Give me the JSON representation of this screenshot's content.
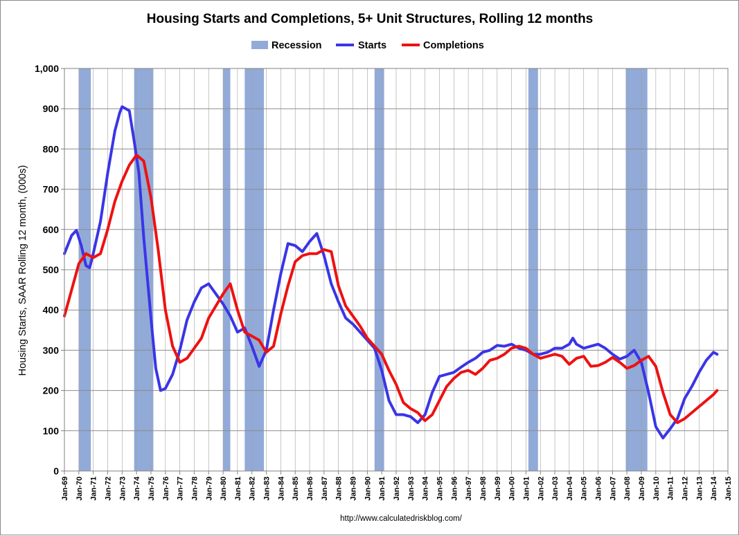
{
  "chart_data": {
    "type": "line",
    "title": "Housing Starts and Completions, 5+ Unit Structures, Rolling 12 months",
    "ylabel": "Housing Starts, SAAR Rolling 12 month, (000s)",
    "xlabel": "",
    "ylim": [
      0,
      1000
    ],
    "yticks": [
      "0",
      "100",
      "200",
      "300",
      "400",
      "500",
      "600",
      "700",
      "800",
      "900",
      "1,000"
    ],
    "xlim": [
      "1969-01",
      "2015-01"
    ],
    "xticks": [
      "Jan-69",
      "Jan-70",
      "Jan-71",
      "Jan-72",
      "Jan-73",
      "Jan-74",
      "Jan-75",
      "Jan-76",
      "Jan-77",
      "Jan-78",
      "Jan-79",
      "Jan-80",
      "Jan-81",
      "Jan-82",
      "Jan-83",
      "Jan-84",
      "Jan-85",
      "Jan-86",
      "Jan-87",
      "Jan-88",
      "Jan-89",
      "Jan-90",
      "Jan-91",
      "Jan-92",
      "Jan-93",
      "Jan-94",
      "Jan-95",
      "Jan-96",
      "Jan-97",
      "Jan-98",
      "Jan-99",
      "Jan-00",
      "Jan-01",
      "Jan-02",
      "Jan-03",
      "Jan-04",
      "Jan-05",
      "Jan-06",
      "Jan-07",
      "Jan-08",
      "Jan-09",
      "Jan-10",
      "Jan-11",
      "Jan-12",
      "Jan-13",
      "Jan-14",
      "Jan-15"
    ],
    "grid": "vertical and horizontal",
    "legend": "top-center",
    "colors": {
      "recession": "#92aad8",
      "starts": "#3a35e6",
      "completions": "#ee1111",
      "plot_background": "#ffffff",
      "grid": "#a0a0a0"
    },
    "recessions": [
      {
        "start": "1970-01",
        "end": "1970-11"
      },
      {
        "start": "1973-11",
        "end": "1975-03"
      },
      {
        "start": "1980-01",
        "end": "1980-07"
      },
      {
        "start": "1981-07",
        "end": "1982-11"
      },
      {
        "start": "1990-07",
        "end": "1991-03"
      },
      {
        "start": "2001-03",
        "end": "2001-11"
      },
      {
        "start": "2007-12",
        "end": "2009-06"
      }
    ],
    "legend_entries": [
      "Recession",
      "Starts",
      "Completions"
    ],
    "series": [
      {
        "name": "Starts",
        "points": [
          [
            "1969-01",
            540
          ],
          [
            "1969-07",
            585
          ],
          [
            "1969-11",
            598
          ],
          [
            "1970-03",
            560
          ],
          [
            "1970-07",
            510
          ],
          [
            "1970-10",
            505
          ],
          [
            "1971-01",
            540
          ],
          [
            "1971-07",
            620
          ],
          [
            "1972-01",
            740
          ],
          [
            "1972-07",
            845
          ],
          [
            "1972-11",
            890
          ],
          [
            "1973-01",
            905
          ],
          [
            "1973-07",
            895
          ],
          [
            "1973-11",
            820
          ],
          [
            "1974-03",
            740
          ],
          [
            "1974-07",
            580
          ],
          [
            "1975-01",
            380
          ],
          [
            "1975-05",
            255
          ],
          [
            "1975-09",
            200
          ],
          [
            "1976-01",
            205
          ],
          [
            "1976-07",
            240
          ],
          [
            "1977-01",
            300
          ],
          [
            "1977-07",
            375
          ],
          [
            "1978-01",
            420
          ],
          [
            "1978-07",
            455
          ],
          [
            "1979-01",
            465
          ],
          [
            "1979-07",
            440
          ],
          [
            "1980-01",
            415
          ],
          [
            "1980-07",
            385
          ],
          [
            "1981-01",
            345
          ],
          [
            "1981-07",
            355
          ],
          [
            "1982-01",
            310
          ],
          [
            "1982-07",
            260
          ],
          [
            "1983-01",
            300
          ],
          [
            "1983-07",
            400
          ],
          [
            "1984-01",
            490
          ],
          [
            "1984-07",
            565
          ],
          [
            "1985-01",
            560
          ],
          [
            "1985-07",
            545
          ],
          [
            "1986-01",
            570
          ],
          [
            "1986-07",
            590
          ],
          [
            "1987-01",
            535
          ],
          [
            "1987-07",
            465
          ],
          [
            "1988-01",
            420
          ],
          [
            "1988-07",
            380
          ],
          [
            "1989-01",
            365
          ],
          [
            "1989-07",
            345
          ],
          [
            "1990-01",
            325
          ],
          [
            "1990-07",
            305
          ],
          [
            "1991-01",
            250
          ],
          [
            "1991-07",
            175
          ],
          [
            "1992-01",
            140
          ],
          [
            "1992-07",
            140
          ],
          [
            "1993-01",
            135
          ],
          [
            "1993-07",
            120
          ],
          [
            "1994-01",
            140
          ],
          [
            "1994-07",
            195
          ],
          [
            "1995-01",
            235
          ],
          [
            "1995-07",
            240
          ],
          [
            "1996-01",
            245
          ],
          [
            "1996-07",
            258
          ],
          [
            "1997-01",
            270
          ],
          [
            "1997-07",
            280
          ],
          [
            "1998-01",
            295
          ],
          [
            "1998-07",
            300
          ],
          [
            "1999-01",
            312
          ],
          [
            "1999-07",
            310
          ],
          [
            "2000-01",
            315
          ],
          [
            "2000-07",
            305
          ],
          [
            "2001-01",
            300
          ],
          [
            "2001-07",
            290
          ],
          [
            "2002-01",
            290
          ],
          [
            "2002-07",
            295
          ],
          [
            "2003-01",
            305
          ],
          [
            "2003-07",
            305
          ],
          [
            "2004-01",
            315
          ],
          [
            "2004-04",
            330
          ],
          [
            "2004-07",
            315
          ],
          [
            "2005-01",
            305
          ],
          [
            "2005-07",
            310
          ],
          [
            "2006-01",
            315
          ],
          [
            "2006-07",
            305
          ],
          [
            "2007-01",
            290
          ],
          [
            "2007-07",
            278
          ],
          [
            "2008-01",
            285
          ],
          [
            "2008-07",
            300
          ],
          [
            "2009-01",
            270
          ],
          [
            "2009-07",
            195
          ],
          [
            "2010-01",
            110
          ],
          [
            "2010-07",
            82
          ],
          [
            "2011-01",
            105
          ],
          [
            "2011-07",
            130
          ],
          [
            "2012-01",
            180
          ],
          [
            "2012-07",
            210
          ],
          [
            "2013-01",
            245
          ],
          [
            "2013-07",
            275
          ],
          [
            "2014-01",
            295
          ],
          [
            "2014-04",
            290
          ]
        ]
      },
      {
        "name": "Completions",
        "points": [
          [
            "1969-01",
            385
          ],
          [
            "1969-07",
            450
          ],
          [
            "1970-01",
            515
          ],
          [
            "1970-07",
            540
          ],
          [
            "1971-01",
            530
          ],
          [
            "1971-07",
            540
          ],
          [
            "1972-01",
            600
          ],
          [
            "1972-07",
            670
          ],
          [
            "1973-01",
            720
          ],
          [
            "1973-07",
            760
          ],
          [
            "1974-01",
            785
          ],
          [
            "1974-07",
            770
          ],
          [
            "1975-01",
            680
          ],
          [
            "1975-07",
            550
          ],
          [
            "1976-01",
            400
          ],
          [
            "1976-07",
            310
          ],
          [
            "1977-01",
            270
          ],
          [
            "1977-07",
            280
          ],
          [
            "1978-01",
            305
          ],
          [
            "1978-07",
            330
          ],
          [
            "1979-01",
            380
          ],
          [
            "1979-07",
            410
          ],
          [
            "1980-01",
            440
          ],
          [
            "1980-07",
            465
          ],
          [
            "1981-01",
            400
          ],
          [
            "1981-07",
            345
          ],
          [
            "1982-01",
            335
          ],
          [
            "1982-07",
            325
          ],
          [
            "1983-01",
            295
          ],
          [
            "1983-07",
            310
          ],
          [
            "1984-01",
            390
          ],
          [
            "1984-07",
            460
          ],
          [
            "1985-01",
            520
          ],
          [
            "1985-07",
            535
          ],
          [
            "1986-01",
            540
          ],
          [
            "1986-07",
            540
          ],
          [
            "1987-01",
            550
          ],
          [
            "1987-07",
            545
          ],
          [
            "1988-01",
            460
          ],
          [
            "1988-07",
            410
          ],
          [
            "1989-01",
            385
          ],
          [
            "1989-07",
            360
          ],
          [
            "1990-01",
            330
          ],
          [
            "1990-07",
            310
          ],
          [
            "1991-01",
            290
          ],
          [
            "1991-07",
            250
          ],
          [
            "1992-01",
            215
          ],
          [
            "1992-07",
            170
          ],
          [
            "1993-01",
            155
          ],
          [
            "1993-07",
            145
          ],
          [
            "1994-01",
            125
          ],
          [
            "1994-07",
            140
          ],
          [
            "1995-01",
            175
          ],
          [
            "1995-07",
            210
          ],
          [
            "1996-01",
            230
          ],
          [
            "1996-07",
            245
          ],
          [
            "1997-01",
            250
          ],
          [
            "1997-07",
            240
          ],
          [
            "1998-01",
            255
          ],
          [
            "1998-07",
            275
          ],
          [
            "1999-01",
            280
          ],
          [
            "1999-07",
            290
          ],
          [
            "2000-01",
            305
          ],
          [
            "2000-07",
            310
          ],
          [
            "2001-01",
            305
          ],
          [
            "2001-07",
            290
          ],
          [
            "2002-01",
            280
          ],
          [
            "2002-07",
            285
          ],
          [
            "2003-01",
            290
          ],
          [
            "2003-07",
            285
          ],
          [
            "2004-01",
            265
          ],
          [
            "2004-07",
            280
          ],
          [
            "2005-01",
            285
          ],
          [
            "2005-07",
            260
          ],
          [
            "2006-01",
            262
          ],
          [
            "2006-07",
            270
          ],
          [
            "2007-01",
            282
          ],
          [
            "2007-07",
            270
          ],
          [
            "2008-01",
            255
          ],
          [
            "2008-07",
            262
          ],
          [
            "2009-01",
            275
          ],
          [
            "2009-07",
            285
          ],
          [
            "2010-01",
            260
          ],
          [
            "2010-07",
            195
          ],
          [
            "2011-01",
            140
          ],
          [
            "2011-07",
            120
          ],
          [
            "2012-01",
            130
          ],
          [
            "2012-07",
            145
          ],
          [
            "2013-01",
            160
          ],
          [
            "2013-07",
            175
          ],
          [
            "2014-01",
            190
          ],
          [
            "2014-04",
            200
          ]
        ]
      }
    ]
  },
  "source": "http://www.calculatedriskblog.com/"
}
